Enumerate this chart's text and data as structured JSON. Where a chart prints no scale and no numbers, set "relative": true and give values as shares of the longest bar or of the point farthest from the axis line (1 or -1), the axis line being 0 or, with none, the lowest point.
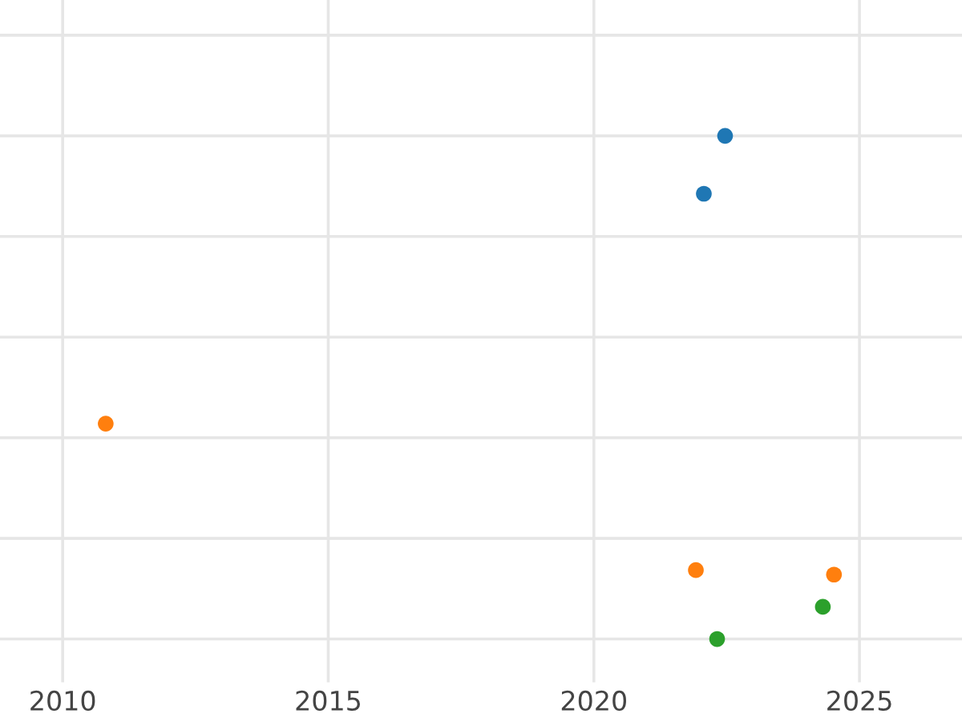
{
  "chart_data": {
    "type": "scatter",
    "relative": true,
    "grid": true,
    "tick_labels": "x",
    "marker": "circle",
    "xlim": [
      2008.82,
      2026.93
    ],
    "xticks": [
      2010,
      2015,
      2020,
      2025
    ],
    "series": [
      {
        "color": "#1f77b4",
        "x": [
          2022.47,
          2022.07
        ],
        "values": [
          1,
          0.885
        ]
      },
      {
        "color": "#ff7f0e",
        "x": [
          2010.81,
          2021.92,
          2024.52
        ],
        "values": [
          0.428,
          0.137,
          0.128
        ]
      },
      {
        "color": "#2ca02c",
        "x": [
          2024.31,
          2022.32
        ],
        "values": [
          0.064,
          0
        ]
      }
    ]
  }
}
